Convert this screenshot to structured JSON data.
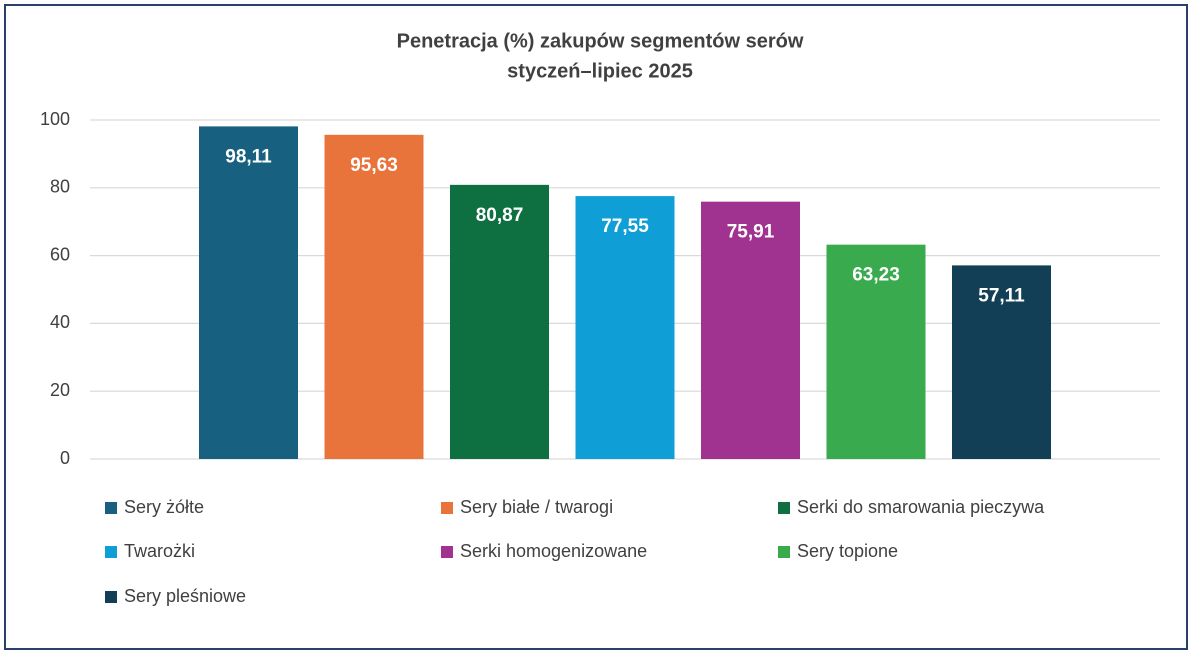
{
  "chart_data": {
    "type": "bar",
    "title": "Penetracja (%) zakupów segmentów serów",
    "subtitle": "styczeń–lipiec 2025",
    "categories": [
      null
    ],
    "series": [
      {
        "name": "Sery żółte",
        "color": "#17607f",
        "values": [
          98.11
        ],
        "value_labels": [
          "98,11"
        ]
      },
      {
        "name": "Sery białe / twarogi",
        "color": "#e8743b",
        "values": [
          95.63
        ],
        "value_labels": [
          "95,63"
        ]
      },
      {
        "name": "Serki do smarowania pieczywa",
        "color": "#0e7040",
        "values": [
          80.87
        ],
        "value_labels": [
          "80,87"
        ]
      },
      {
        "name": "Twarożki",
        "color": "#0f9ed5",
        "values": [
          77.55
        ],
        "value_labels": [
          "77,55"
        ]
      },
      {
        "name": "Serki homogenizowane",
        "color": "#a0338f",
        "values": [
          75.91
        ],
        "value_labels": [
          "75,91"
        ]
      },
      {
        "name": "Sery topione",
        "color": "#3aaa4e",
        "values": [
          63.23
        ],
        "value_labels": [
          "63,23"
        ]
      },
      {
        "name": "Sery pleśniowe",
        "color": "#123f55",
        "values": [
          57.11
        ],
        "value_labels": [
          "57,11"
        ]
      }
    ],
    "ylim": [
      0,
      100
    ],
    "yticks": [
      0,
      20,
      40,
      60,
      80,
      100
    ],
    "grid": true
  }
}
